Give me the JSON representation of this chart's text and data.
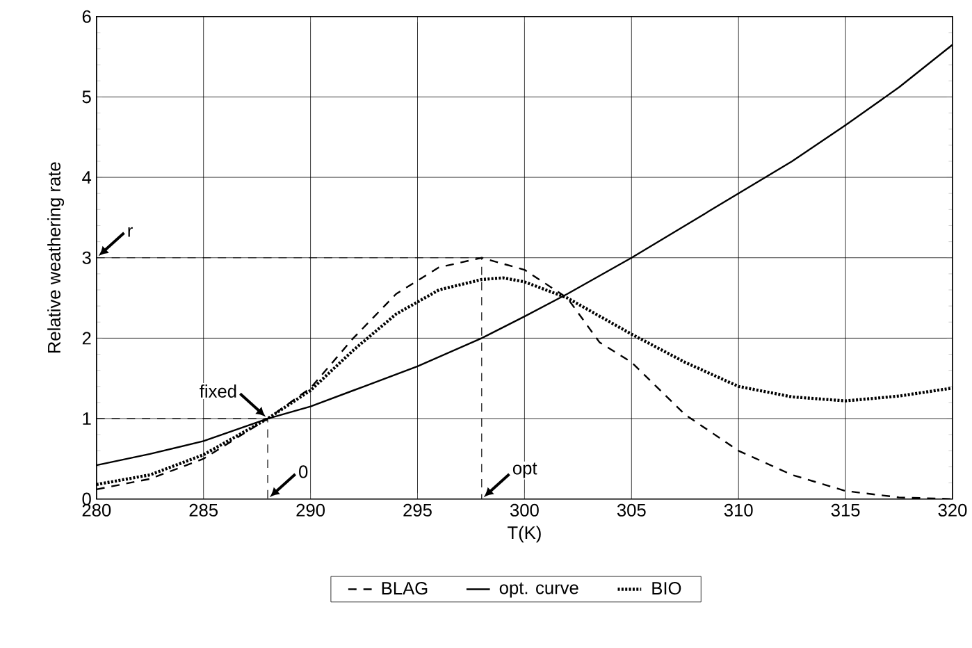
{
  "chart_data": {
    "type": "line",
    "xlabel": "T(K)",
    "ylabel": "Relative weathering rate",
    "xlim": [
      280,
      320
    ],
    "ylim": [
      0,
      6
    ],
    "xticks": [
      280,
      285,
      290,
      295,
      300,
      305,
      310,
      315,
      320
    ],
    "yticks": [
      0,
      1,
      2,
      3,
      4,
      5,
      6
    ],
    "grid": true,
    "legend": "bottom",
    "series": [
      {
        "name": "BLAG",
        "color": "#000000",
        "line_style": "dashed",
        "x": [
          280,
          282.5,
          285,
          288,
          290,
          292,
          294,
          296,
          298,
          300,
          302,
          303.5,
          305,
          307.5,
          310,
          312.5,
          315,
          317.5,
          320
        ],
        "values": [
          0.12,
          0.25,
          0.5,
          1.0,
          1.38,
          2.0,
          2.55,
          2.88,
          3.0,
          2.85,
          2.5,
          1.95,
          1.7,
          1.05,
          0.6,
          0.3,
          0.1,
          0.02,
          0
        ]
      },
      {
        "name": "opt. curve",
        "color": "#000000",
        "line_style": "solid",
        "x": [
          280,
          282.5,
          285,
          288,
          290,
          292.5,
          295,
          298,
          300,
          302,
          305,
          307.5,
          310,
          312.5,
          315,
          317.5,
          320
        ],
        "values": [
          0.42,
          0.56,
          0.72,
          1.0,
          1.15,
          1.4,
          1.65,
          2.0,
          2.27,
          2.55,
          3.0,
          3.4,
          3.8,
          4.2,
          4.65,
          5.12,
          5.65
        ]
      },
      {
        "name": "BIO",
        "color": "#000000",
        "line_style": "dotted",
        "x": [
          280,
          282.5,
          285,
          288,
          290,
          292,
          294,
          296,
          298,
          299,
          300,
          302,
          305,
          307.5,
          310,
          312.5,
          315,
          317.5,
          320
        ],
        "values": [
          0.18,
          0.3,
          0.55,
          1.0,
          1.35,
          1.85,
          2.3,
          2.6,
          2.73,
          2.75,
          2.7,
          2.5,
          2.05,
          1.7,
          1.4,
          1.27,
          1.22,
          1.28,
          1.38
        ]
      },
      {
        "color": "#000000",
        "line_style": "dashed",
        "x": [
          280,
          298,
          298
        ],
        "values": [
          3,
          3,
          0
        ]
      },
      {
        "color": "#000000",
        "line_style": "dashed",
        "x": [
          280,
          288,
          288
        ],
        "values": [
          1,
          1,
          0
        ]
      }
    ],
    "annotations": [
      {
        "text": "r",
        "x": 280,
        "y": 3
      },
      {
        "text": "fixed",
        "x": 288,
        "y": 1
      },
      {
        "text": "0",
        "x": 288,
        "y": 0
      },
      {
        "text": "opt",
        "x": 298,
        "y": 0
      }
    ]
  }
}
